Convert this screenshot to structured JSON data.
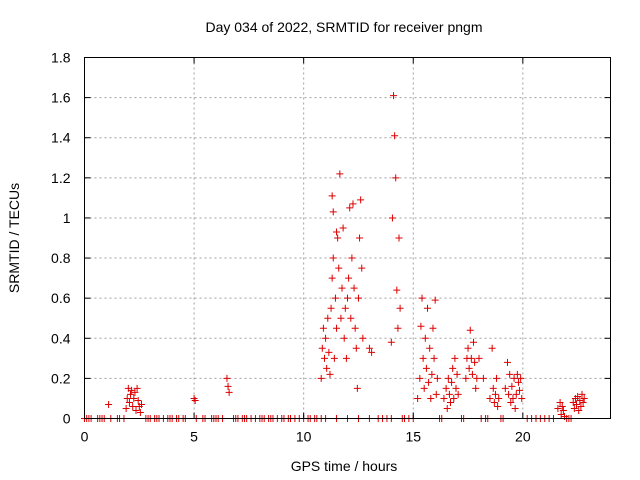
{
  "chart_data": {
    "type": "scatter",
    "title": "Day 034 of 2022, SRMTID for receiver pngm",
    "xlabel": "GPS time / hours",
    "ylabel": "SRMTID / TECUs",
    "xlim": [
      0,
      24
    ],
    "ylim": [
      0,
      1.8
    ],
    "grid": true,
    "marker": "+",
    "color": "#dd0000",
    "x_ticks": [
      0,
      5,
      10,
      15,
      20
    ],
    "x_tick_labels": [
      "0",
      "5",
      "10",
      "15",
      "20"
    ],
    "y_ticks": [
      0,
      0.2,
      0.4,
      0.6,
      0.8,
      1.0,
      1.2,
      1.4,
      1.6,
      1.8
    ],
    "y_tick_labels": [
      "0",
      "0.2",
      "0.4",
      "0.6",
      "0.8",
      "1",
      "1.2",
      "1.4",
      "1.6",
      "1.8"
    ],
    "series": [
      {
        "name": "SRMTID",
        "points": [
          [
            0.0,
            0
          ],
          [
            0.1,
            0
          ],
          [
            0.2,
            0
          ],
          [
            0.3,
            0
          ],
          [
            0.6,
            0
          ],
          [
            0.7,
            0
          ],
          [
            0.8,
            0
          ],
          [
            0.9,
            0
          ],
          [
            1.1,
            0.07
          ],
          [
            1.2,
            0
          ],
          [
            1.5,
            0
          ],
          [
            1.6,
            0
          ],
          [
            1.8,
            0
          ],
          [
            1.9,
            0.05
          ],
          [
            1.95,
            0.1
          ],
          [
            2.0,
            0.15
          ],
          [
            2.05,
            0.08
          ],
          [
            2.1,
            0.12
          ],
          [
            2.15,
            0.14
          ],
          [
            2.2,
            0.06
          ],
          [
            2.25,
            0.1
          ],
          [
            2.3,
            0.13
          ],
          [
            2.35,
            0.04
          ],
          [
            2.4,
            0.15
          ],
          [
            2.45,
            0.09
          ],
          [
            2.5,
            0.06
          ],
          [
            2.55,
            0.03
          ],
          [
            2.6,
            0.07
          ],
          [
            2.8,
            0
          ],
          [
            2.9,
            0
          ],
          [
            3.0,
            0
          ],
          [
            3.2,
            0
          ],
          [
            3.3,
            0
          ],
          [
            3.4,
            0
          ],
          [
            3.6,
            0
          ],
          [
            3.8,
            0
          ],
          [
            3.9,
            0
          ],
          [
            4.0,
            0
          ],
          [
            4.2,
            0
          ],
          [
            4.3,
            0
          ],
          [
            4.5,
            0
          ],
          [
            4.6,
            0
          ],
          [
            5.0,
            0.1
          ],
          [
            5.05,
            0.09
          ],
          [
            5.1,
            0
          ],
          [
            5.4,
            0
          ],
          [
            5.5,
            0
          ],
          [
            5.8,
            0
          ],
          [
            5.9,
            0
          ],
          [
            6.0,
            0
          ],
          [
            6.1,
            0
          ],
          [
            6.3,
            0
          ],
          [
            6.5,
            0.2
          ],
          [
            6.55,
            0.16
          ],
          [
            6.6,
            0.13
          ],
          [
            6.8,
            0
          ],
          [
            6.9,
            0
          ],
          [
            7.0,
            0
          ],
          [
            7.2,
            0
          ],
          [
            7.3,
            0
          ],
          [
            7.4,
            0
          ],
          [
            7.6,
            0
          ],
          [
            7.8,
            0
          ],
          [
            8.0,
            0
          ],
          [
            8.1,
            0
          ],
          [
            8.2,
            0
          ],
          [
            8.4,
            0
          ],
          [
            8.5,
            0
          ],
          [
            8.6,
            0
          ],
          [
            8.8,
            0
          ],
          [
            9.0,
            0
          ],
          [
            9.1,
            0
          ],
          [
            9.3,
            0
          ],
          [
            9.4,
            0
          ],
          [
            9.6,
            0
          ],
          [
            9.8,
            0
          ],
          [
            10.0,
            0
          ],
          [
            10.2,
            0
          ],
          [
            10.3,
            0
          ],
          [
            10.5,
            0
          ],
          [
            10.6,
            0
          ],
          [
            10.8,
            0
          ],
          [
            10.8,
            0.2
          ],
          [
            10.85,
            0.35
          ],
          [
            10.9,
            0.45
          ],
          [
            10.95,
            0.3
          ],
          [
            11.0,
            0.4
          ],
          [
            11.05,
            0.25
          ],
          [
            11.1,
            0.5
          ],
          [
            11.15,
            0.33
          ],
          [
            11.2,
            0.22
          ],
          [
            11.25,
            0.55
          ],
          [
            11.3,
            0.7
          ],
          [
            11.3,
            1.11
          ],
          [
            11.35,
            0.8
          ],
          [
            11.35,
            1.03
          ],
          [
            11.4,
            0.3
          ],
          [
            11.45,
            0.6
          ],
          [
            11.5,
            0.45
          ],
          [
            11.5,
            0.93
          ],
          [
            11.55,
            0.9
          ],
          [
            11.6,
            0.75
          ],
          [
            11.65,
            1.22
          ],
          [
            11.7,
            0.5
          ],
          [
            11.75,
            0.65
          ],
          [
            11.8,
            0.95
          ],
          [
            11.85,
            0.4
          ],
          [
            11.9,
            0.55
          ],
          [
            11.95,
            0.3
          ],
          [
            12.0,
            0.6
          ],
          [
            12.05,
            0.7
          ],
          [
            12.1,
            1.05
          ],
          [
            12.15,
            0.5
          ],
          [
            12.2,
            0.8
          ],
          [
            12.25,
            1.07
          ],
          [
            12.3,
            0.65
          ],
          [
            12.35,
            0.45
          ],
          [
            12.4,
            0.35
          ],
          [
            12.45,
            0.15
          ],
          [
            12.5,
            0.6
          ],
          [
            12.55,
            0.9
          ],
          [
            12.6,
            1.09
          ],
          [
            12.65,
            0.75
          ],
          [
            12.7,
            0.4
          ],
          [
            13.0,
            0.35
          ],
          [
            13.1,
            0.33
          ],
          [
            11.0,
            0
          ],
          [
            11.5,
            0
          ],
          [
            12.0,
            0
          ],
          [
            12.5,
            0
          ],
          [
            13.0,
            0
          ],
          [
            13.4,
            0
          ],
          [
            13.6,
            0
          ],
          [
            13.8,
            0
          ],
          [
            14.0,
            0
          ],
          [
            14.0,
            0.38
          ],
          [
            14.05,
            1.0
          ],
          [
            14.1,
            1.61
          ],
          [
            14.15,
            1.41
          ],
          [
            14.2,
            1.2
          ],
          [
            14.25,
            0.64
          ],
          [
            14.3,
            0.45
          ],
          [
            14.35,
            0.9
          ],
          [
            14.4,
            0.55
          ],
          [
            14.5,
            0
          ],
          [
            14.6,
            0
          ],
          [
            14.8,
            0
          ],
          [
            15.0,
            0
          ],
          [
            15.2,
            0.1
          ],
          [
            15.3,
            0.2
          ],
          [
            15.35,
            0.46
          ],
          [
            15.4,
            0.6
          ],
          [
            15.45,
            0.3
          ],
          [
            15.5,
            0.15
          ],
          [
            15.55,
            0.4
          ],
          [
            15.6,
            0.25
          ],
          [
            15.65,
            0.55
          ],
          [
            15.7,
            0.18
          ],
          [
            15.75,
            0.35
          ],
          [
            15.8,
            0.1
          ],
          [
            15.85,
            0.22
          ],
          [
            15.9,
            0.45
          ],
          [
            15.95,
            0.3
          ],
          [
            16.0,
            0.59
          ],
          [
            16.05,
            0.12
          ],
          [
            16.1,
            0.2
          ],
          [
            16.2,
            0
          ],
          [
            16.3,
            0
          ],
          [
            16.4,
            0.1
          ],
          [
            16.5,
            0.15
          ],
          [
            16.55,
            0.05
          ],
          [
            16.6,
            0.2
          ],
          [
            16.65,
            0.12
          ],
          [
            16.7,
            0.08
          ],
          [
            16.75,
            0.18
          ],
          [
            16.8,
            0.25
          ],
          [
            16.85,
            0.1
          ],
          [
            16.9,
            0.3
          ],
          [
            16.95,
            0.15
          ],
          [
            17.0,
            0.22
          ],
          [
            17.05,
            0.12
          ],
          [
            17.2,
            0
          ],
          [
            17.3,
            0
          ],
          [
            17.4,
            0.2
          ],
          [
            17.45,
            0.3
          ],
          [
            17.5,
            0.35
          ],
          [
            17.55,
            0.25
          ],
          [
            17.6,
            0.44
          ],
          [
            17.65,
            0.3
          ],
          [
            17.7,
            0.22
          ],
          [
            17.75,
            0.38
          ],
          [
            17.8,
            0.28
          ],
          [
            17.85,
            0.15
          ],
          [
            17.9,
            0.2
          ],
          [
            18.0,
            0.3
          ],
          [
            18.1,
            0
          ],
          [
            18.2,
            0.2
          ],
          [
            18.3,
            0
          ],
          [
            18.4,
            0
          ],
          [
            18.5,
            0.1
          ],
          [
            18.6,
            0.35
          ],
          [
            18.65,
            0.15
          ],
          [
            18.7,
            0.08
          ],
          [
            18.75,
            0.12
          ],
          [
            18.8,
            0.2
          ],
          [
            18.85,
            0.06
          ],
          [
            18.9,
            0.1
          ],
          [
            19.0,
            0
          ],
          [
            19.1,
            0
          ],
          [
            19.2,
            0.15
          ],
          [
            19.3,
            0.28
          ],
          [
            19.35,
            0.12
          ],
          [
            19.4,
            0.22
          ],
          [
            19.45,
            0.08
          ],
          [
            19.5,
            0.16
          ],
          [
            19.55,
            0.1
          ],
          [
            19.6,
            0.2
          ],
          [
            19.65,
            0.05
          ],
          [
            19.7,
            0.12
          ],
          [
            19.75,
            0.22
          ],
          [
            19.8,
            0.18
          ],
          [
            19.85,
            0.14
          ],
          [
            19.9,
            0.2
          ],
          [
            19.95,
            0.1
          ],
          [
            20.2,
            0
          ],
          [
            20.4,
            0
          ],
          [
            20.6,
            0
          ],
          [
            20.8,
            0
          ],
          [
            21.0,
            0
          ],
          [
            21.2,
            0
          ],
          [
            21.4,
            0
          ],
          [
            21.6,
            0.05
          ],
          [
            21.7,
            0.08
          ],
          [
            21.75,
            0.02
          ],
          [
            21.8,
            0.06
          ],
          [
            21.85,
            0.04
          ],
          [
            21.9,
            0.01
          ],
          [
            22.0,
            0
          ],
          [
            22.1,
            0
          ],
          [
            22.2,
            0
          ],
          [
            22.3,
            0.08
          ],
          [
            22.35,
            0.05
          ],
          [
            22.4,
            0.1
          ],
          [
            22.45,
            0.07
          ],
          [
            22.5,
            0.11
          ],
          [
            22.55,
            0.04
          ],
          [
            22.6,
            0.09
          ],
          [
            22.65,
            0.06
          ],
          [
            22.7,
            0.12
          ],
          [
            22.75,
            0.08
          ],
          [
            22.8,
            0.1
          ]
        ]
      }
    ]
  }
}
